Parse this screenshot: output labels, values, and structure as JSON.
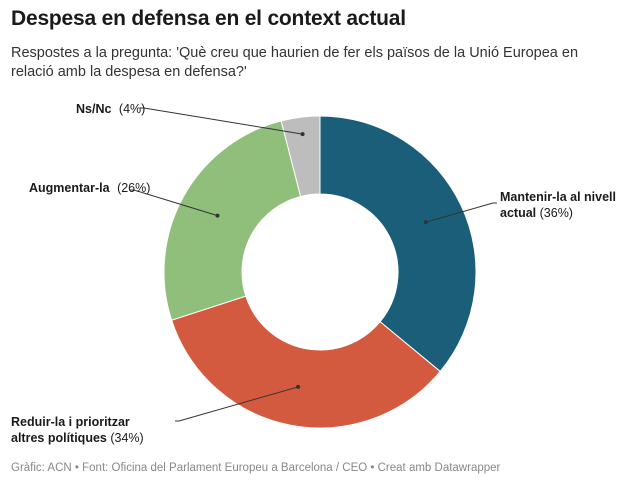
{
  "title": "Despesa en defensa en el context actual",
  "subtitle": "Respostes a la pregunta: 'Què creu que haurien de fer els països de la Unió Europea en relació amb la despesa en defensa?'",
  "footer": "Gràfic: ACN • Font: Oficina del Parlament Europeu a Barcelona / CEO • Creat amb Datawrapper",
  "chart_data": {
    "type": "pie",
    "donut": true,
    "slices": [
      {
        "label": "Mantenir-la al nivell actual",
        "value_text": "(36%)",
        "value": 36,
        "color": "#1b5e7a"
      },
      {
        "label": "Reduir-la i prioritzar altres polítiques",
        "value_text": "(34%)",
        "value": 34,
        "color": "#d45a3f"
      },
      {
        "label": "Augmentar-la",
        "value_text": "(26%)",
        "value": 26,
        "color": "#8fbf7a"
      },
      {
        "label": "Ns/Nc",
        "value_text": "(4%)",
        "value": 4,
        "color": "#bdbdbd"
      }
    ]
  }
}
